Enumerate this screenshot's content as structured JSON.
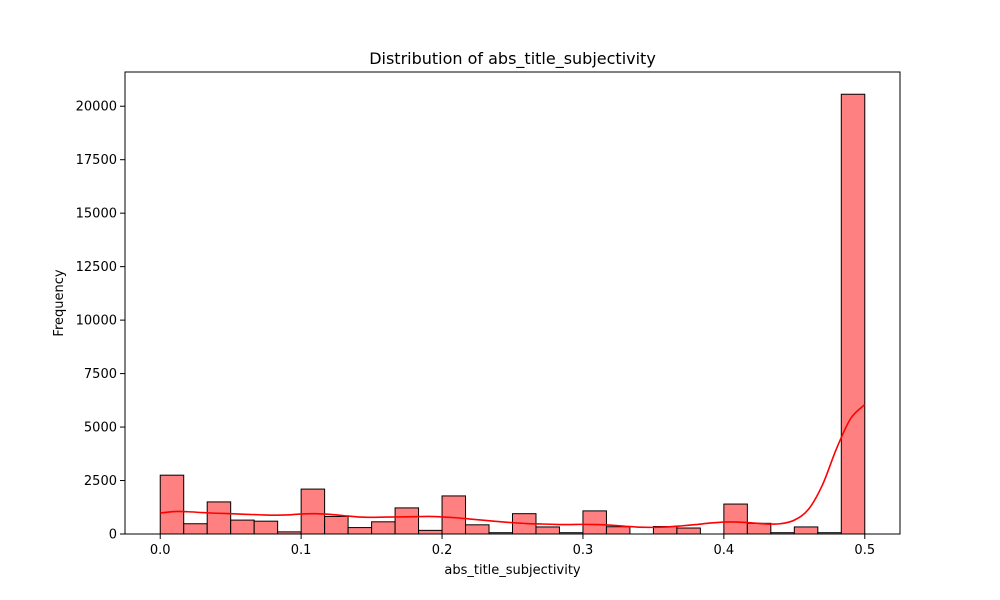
{
  "chart_data": {
    "type": "bar",
    "title": "Distribution of  abs_title_subjectivity",
    "xlabel": "abs_title_subjectivity",
    "ylabel": "Frequency",
    "xlim": [
      -0.025,
      0.525
    ],
    "ylim": [
      0,
      21600
    ],
    "x_ticks": [
      0.0,
      0.1,
      0.2,
      0.3,
      0.4,
      0.5
    ],
    "x_tick_labels": [
      "0.0",
      "0.1",
      "0.2",
      "0.3",
      "0.4",
      "0.5"
    ],
    "y_ticks": [
      0,
      2500,
      5000,
      7500,
      10000,
      12500,
      15000,
      17500,
      20000
    ],
    "y_tick_labels": [
      "0",
      "2500",
      "5000",
      "7500",
      "10000",
      "12500",
      "15000",
      "17500",
      "20000"
    ],
    "bin_edges": [
      0.0,
      0.01667,
      0.03333,
      0.05,
      0.06667,
      0.08333,
      0.1,
      0.11667,
      0.13333,
      0.15,
      0.16667,
      0.18333,
      0.2,
      0.21667,
      0.23333,
      0.25,
      0.26667,
      0.28333,
      0.3,
      0.31667,
      0.33333,
      0.35,
      0.36667,
      0.38333,
      0.4,
      0.41667,
      0.43333,
      0.45,
      0.46667,
      0.48333,
      0.5
    ],
    "values": [
      2750,
      480,
      1500,
      650,
      600,
      100,
      2100,
      820,
      300,
      570,
      1220,
      170,
      1780,
      430,
      60,
      950,
      330,
      60,
      1080,
      340,
      0,
      350,
      280,
      0,
      1400,
      500,
      60,
      330,
      60,
      20560
    ],
    "kde": {
      "x": [
        0.0,
        0.01,
        0.02,
        0.03,
        0.04,
        0.05,
        0.06,
        0.07,
        0.08,
        0.09,
        0.1,
        0.11,
        0.12,
        0.13,
        0.14,
        0.15,
        0.16,
        0.17,
        0.18,
        0.19,
        0.2,
        0.21,
        0.22,
        0.23,
        0.24,
        0.25,
        0.26,
        0.27,
        0.28,
        0.29,
        0.3,
        0.31,
        0.32,
        0.33,
        0.34,
        0.35,
        0.36,
        0.37,
        0.38,
        0.39,
        0.4,
        0.41,
        0.42,
        0.43,
        0.44,
        0.45,
        0.46,
        0.47,
        0.48,
        0.49,
        0.5
      ],
      "y": [
        980,
        1050,
        1040,
        1000,
        970,
        950,
        920,
        900,
        880,
        890,
        940,
        950,
        920,
        860,
        800,
        780,
        790,
        800,
        810,
        820,
        800,
        760,
        700,
        640,
        580,
        530,
        490,
        470,
        450,
        440,
        450,
        440,
        410,
        360,
        320,
        310,
        330,
        380,
        440,
        510,
        560,
        560,
        520,
        470,
        480,
        650,
        1150,
        2300,
        4000,
        5400,
        6050
      ]
    },
    "colors": {
      "bar_fill": "#ff8080",
      "bar_edge": "#000000",
      "kde_line": "#ff0000"
    },
    "grid": false,
    "legend": "none"
  }
}
